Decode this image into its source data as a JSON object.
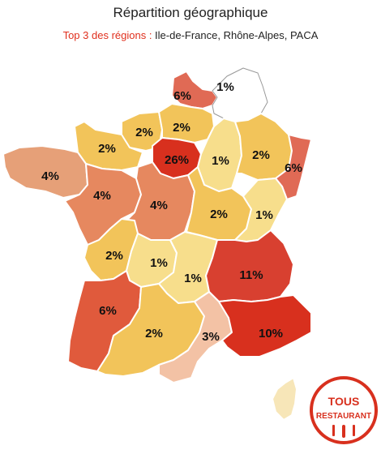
{
  "header": {
    "title": "Répartition géographique",
    "subtitle_lead": "Top 3 des régions :",
    "subtitle_rest": " Ile-de-France, Rhône-Alpes, PACA"
  },
  "legend_colors": {
    "very_high": "#d8301e",
    "high": "#e05a3c",
    "medium_high": "#e6885f",
    "medium": "#f2c45a",
    "low": "#f7de8c",
    "very_low": "#f3c2a5",
    "minimal": "#ffffff"
  },
  "regions": [
    {
      "id": "nord-pas-de-calais",
      "value": "6%",
      "color": "#e06a55"
    },
    {
      "id": "champagne-ardenne",
      "value": "1%",
      "color": "#ffffff"
    },
    {
      "id": "haute-normandie",
      "value": "2%",
      "color": "#f2c45a"
    },
    {
      "id": "picardie",
      "value": "2%",
      "color": "#f2c45a"
    },
    {
      "id": "basse-normandie",
      "value": "2%",
      "color": "#f2c45a"
    },
    {
      "id": "ile-de-france",
      "value": "26%",
      "color": "#d8301e"
    },
    {
      "id": "lorraine-champagne",
      "value": "1%",
      "color": "#f7de8c"
    },
    {
      "id": "lorraine",
      "value": "2%",
      "color": "#f2c45a"
    },
    {
      "id": "alsace",
      "value": "6%",
      "color": "#e06a55"
    },
    {
      "id": "bretagne",
      "value": "4%",
      "color": "#e6a078"
    },
    {
      "id": "pays-de-la-loire",
      "value": "4%",
      "color": "#e6885f"
    },
    {
      "id": "centre",
      "value": "4%",
      "color": "#e6885f"
    },
    {
      "id": "bourgogne",
      "value": "2%",
      "color": "#f2c45a"
    },
    {
      "id": "franche-comte",
      "value": "1%",
      "color": "#f7de8c"
    },
    {
      "id": "poitou-charentes",
      "value": "2%",
      "color": "#f2c45a"
    },
    {
      "id": "limousin",
      "value": "1%",
      "color": "#f7de8c"
    },
    {
      "id": "auvergne",
      "value": "1%",
      "color": "#f7de8c"
    },
    {
      "id": "rhone-alpes",
      "value": "11%",
      "color": "#d84030"
    },
    {
      "id": "aquitaine",
      "value": "6%",
      "color": "#e05a3c"
    },
    {
      "id": "midi-pyrenees",
      "value": "2%",
      "color": "#f2c45a"
    },
    {
      "id": "languedoc-roussillon",
      "value": "3%",
      "color": "#f3c2a5"
    },
    {
      "id": "paca",
      "value": "10%",
      "color": "#d8301e"
    },
    {
      "id": "corse",
      "value": "",
      "color": "#f7e6b8"
    }
  ],
  "logo": {
    "line1": "TOUS",
    "line2": "RESTAURANT",
    "color": "#d8301e"
  }
}
